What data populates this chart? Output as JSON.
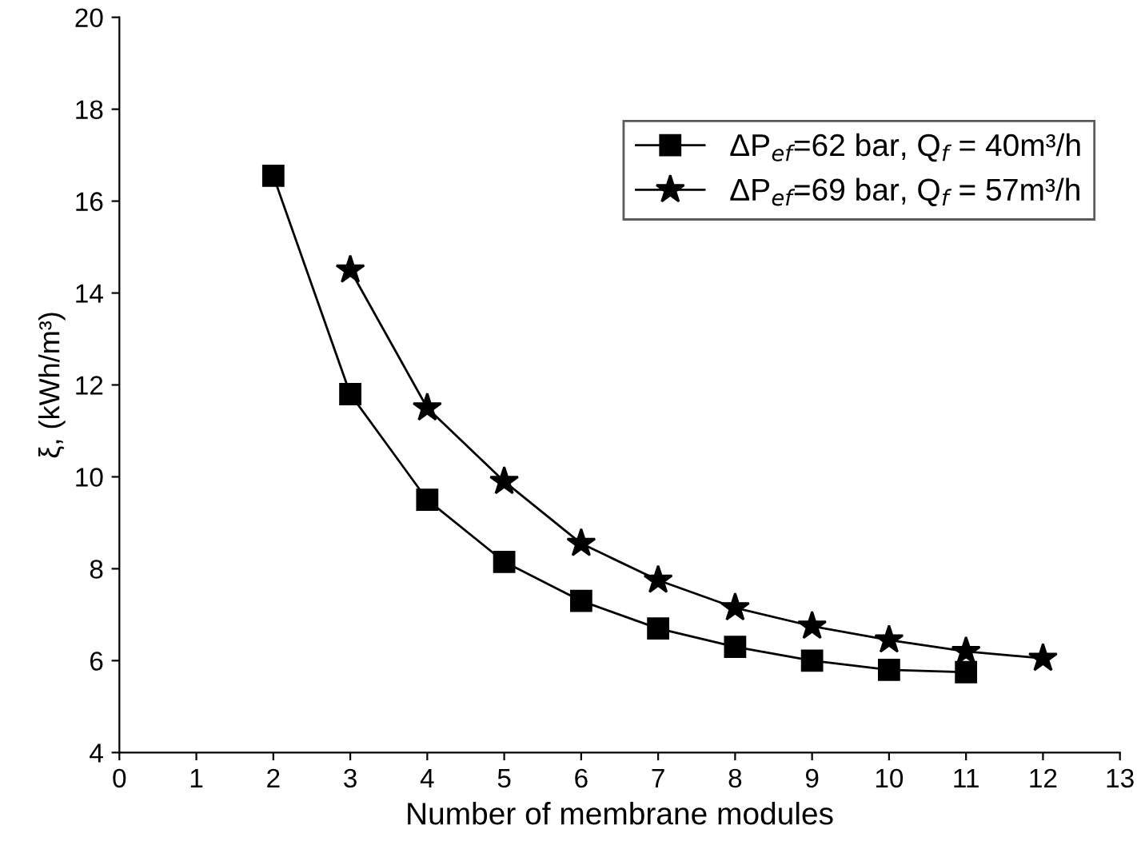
{
  "chart_data": {
    "type": "line",
    "xlabel": "Number of membrane modules",
    "ylabel": "ξ, (kWh/m³)",
    "xlim": [
      0,
      13
    ],
    "xticks": [
      0,
      1,
      2,
      3,
      4,
      5,
      6,
      7,
      8,
      9,
      10,
      11,
      12,
      13
    ],
    "ylim": [
      4,
      20
    ],
    "yticks": [
      4,
      6,
      8,
      10,
      12,
      14,
      16,
      18,
      20
    ],
    "grid": false,
    "legend": "top right",
    "line_style": "solid",
    "series": [
      {
        "name": "ΔP$_{ef}$=62 bar, Q$_{f}$ = 40m³/h",
        "color": "#000000",
        "marker": "square",
        "x": [
          2,
          3,
          4,
          5,
          6,
          7,
          8,
          9,
          10,
          11
        ],
        "values": [
          16.55,
          11.8,
          9.5,
          8.15,
          7.3,
          6.7,
          6.3,
          6.0,
          5.8,
          5.75
        ]
      },
      {
        "name": "ΔP$_{ef}$=69 bar, Q$_{f}$ = 57m³/h",
        "color": "#000000",
        "marker": "star",
        "x": [
          3,
          4,
          5,
          6,
          7,
          8,
          9,
          10,
          11,
          12
        ],
        "values": [
          14.5,
          11.5,
          9.9,
          8.55,
          7.75,
          7.15,
          6.75,
          6.45,
          6.2,
          6.05
        ]
      }
    ]
  }
}
